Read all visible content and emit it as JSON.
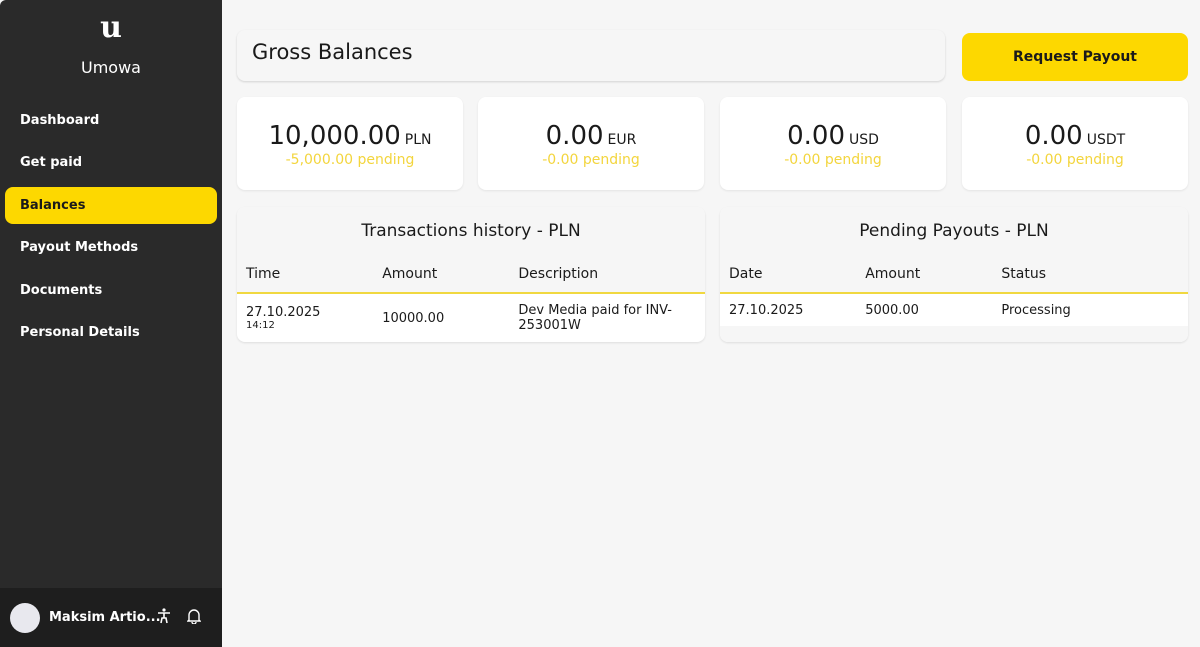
{
  "sidebar": {
    "logo": "u",
    "brand": "Umowa",
    "items": [
      {
        "label": "Dashboard"
      },
      {
        "label": "Get paid"
      },
      {
        "label": "Balances",
        "active": true
      },
      {
        "label": "Payout Methods"
      },
      {
        "label": "Documents"
      },
      {
        "label": "Personal Details"
      }
    ],
    "user": {
      "name": "Maksim Artio...",
      "icons": [
        "accessibility-icon",
        "bell-icon"
      ]
    }
  },
  "header": {
    "title": "Gross Balances",
    "request_payout": "Request Payout"
  },
  "balances": [
    {
      "amount": "10,000.00",
      "currency": "PLN",
      "pending": "-5,000.00 pending"
    },
    {
      "amount": "0.00",
      "currency": "EUR",
      "pending": "-0.00 pending"
    },
    {
      "amount": "0.00",
      "currency": "USD",
      "pending": "-0.00 pending"
    },
    {
      "amount": "0.00",
      "currency": "USDT",
      "pending": "-0.00 pending"
    }
  ],
  "transactions": {
    "title": "Transactions history - PLN",
    "columns": [
      "Time",
      "Amount",
      "Description"
    ],
    "rows": [
      {
        "date": "27.10.2025",
        "time": "14:12",
        "amount": "10000.00",
        "description": "Dev Media paid for INV-253001W"
      }
    ]
  },
  "payouts": {
    "title": "Pending Payouts - PLN",
    "columns": [
      "Date",
      "Amount",
      "Status"
    ],
    "rows": [
      {
        "date": "27.10.2025",
        "amount": "5000.00",
        "status": "Processing"
      }
    ]
  },
  "colors": {
    "accent": "#fdd800",
    "sidebar": "#2a2a2a",
    "pending": "#f3d53d"
  }
}
